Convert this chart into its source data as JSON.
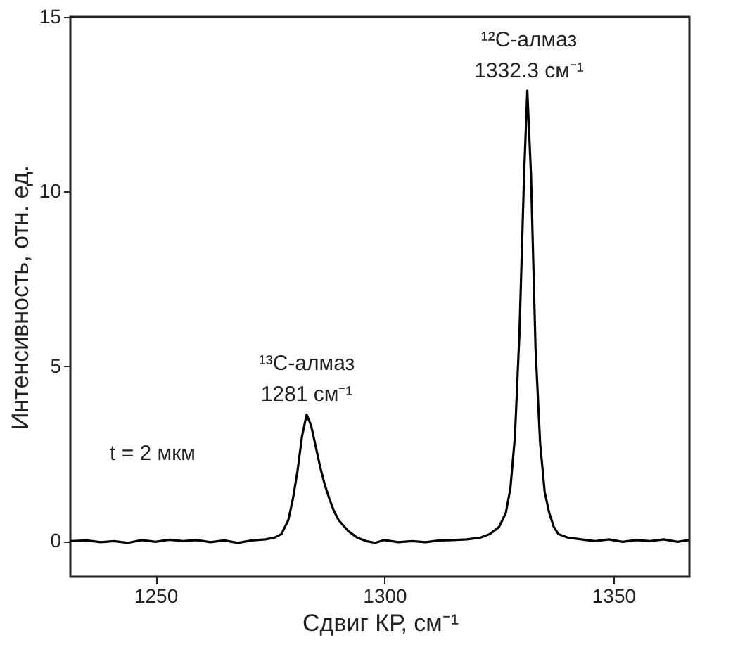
{
  "chart_data": {
    "type": "line",
    "xlabel": "Сдвиг КР, см⁻¹",
    "ylabel": "Интенсивность, отн. ед.",
    "xlim": [
      1231.4,
      1366.6
    ],
    "ylim": [
      -1.02,
      15
    ],
    "xticks": [
      1250,
      1300,
      1350
    ],
    "yticks": [
      0,
      5,
      10,
      15
    ],
    "grid": false,
    "marker": "none",
    "line_style": "solid",
    "series": [
      {
        "color": "#000000",
        "x": [
          1231.5,
          1235,
          1238,
          1241,
          1244,
          1247,
          1250,
          1253,
          1256,
          1259,
          1262,
          1265,
          1268,
          1271,
          1274,
          1276,
          1277.5,
          1279,
          1280,
          1281,
          1282,
          1283,
          1284,
          1285,
          1286,
          1287,
          1288,
          1289,
          1290,
          1291,
          1292,
          1293,
          1294,
          1296,
          1298,
          1300,
          1303,
          1306,
          1309,
          1312,
          1315,
          1318,
          1321,
          1323,
          1325,
          1326.5,
          1327.5,
          1328.5,
          1329.5,
          1330.5,
          1331.2,
          1332,
          1333,
          1334,
          1335,
          1336,
          1337,
          1338,
          1340,
          1343,
          1346,
          1349,
          1352,
          1355,
          1358,
          1361,
          1364,
          1366.5
        ],
        "values": [
          0.0,
          0.02,
          -0.03,
          0.0,
          -0.05,
          0.03,
          -0.02,
          0.04,
          0.0,
          0.03,
          -0.03,
          0.02,
          -0.05,
          0.02,
          0.05,
          0.1,
          0.2,
          0.6,
          1.2,
          2.0,
          3.0,
          3.62,
          3.3,
          2.7,
          2.1,
          1.6,
          1.2,
          0.85,
          0.6,
          0.45,
          0.3,
          0.2,
          0.1,
          0.0,
          -0.05,
          0.03,
          -0.03,
          0.0,
          -0.03,
          0.02,
          0.03,
          0.05,
          0.1,
          0.2,
          0.4,
          0.8,
          1.5,
          3.0,
          6.0,
          10.5,
          12.89,
          10.5,
          5.5,
          2.8,
          1.4,
          0.8,
          0.4,
          0.2,
          0.1,
          0.05,
          0.0,
          0.05,
          -0.02,
          0.03,
          0.0,
          0.05,
          -0.02,
          0.03
        ]
      }
    ],
    "annotations": [
      "¹³C-алмаз",
      "1281 см⁻¹",
      "¹²C-алмаз",
      "1332.3 см⁻¹",
      "t = 2 мкм"
    ]
  }
}
